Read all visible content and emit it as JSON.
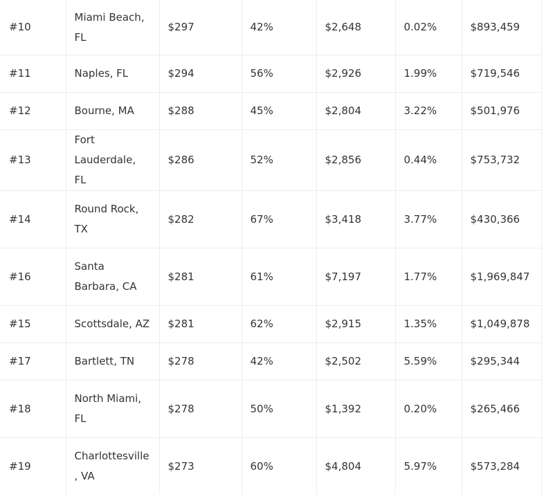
{
  "table": {
    "rows": [
      {
        "rank": "#10",
        "city": "Miami Beach, FL",
        "cost": "$297",
        "pct": "42%",
        "rent": "$2,648",
        "growth": "0.02%",
        "price": "$893,459",
        "size": "first"
      },
      {
        "rank": "#11",
        "city": "Naples, FL",
        "cost": "$294",
        "pct": "56%",
        "rent": "$2,926",
        "growth": "1.99%",
        "price": "$719,546",
        "size": "short"
      },
      {
        "rank": "#12",
        "city": "Bourne, MA",
        "cost": "$288",
        "pct": "45%",
        "rent": "$2,804",
        "growth": "3.22%",
        "price": "$501,976",
        "size": "short"
      },
      {
        "rank": "#13",
        "city": "Fort Lauderdale, FL",
        "cost": "$286",
        "pct": "52%",
        "rent": "$2,856",
        "growth": "0.44%",
        "price": "$753,732",
        "size": "tall"
      },
      {
        "rank": "#14",
        "city": "Round Rock, TX",
        "cost": "$282",
        "pct": "67%",
        "rent": "$3,418",
        "growth": "3.77%",
        "price": "$430,366",
        "size": "tall"
      },
      {
        "rank": "#16",
        "city": "Santa Barbara, CA",
        "cost": "$281",
        "pct": "61%",
        "rent": "$7,197",
        "growth": "1.77%",
        "price": "$1,969,847",
        "size": "tall"
      },
      {
        "rank": "#15",
        "city": "Scottsdale, AZ",
        "cost": "$281",
        "pct": "62%",
        "rent": "$2,915",
        "growth": "1.35%",
        "price": "$1,049,878",
        "size": "short"
      },
      {
        "rank": "#17",
        "city": "Bartlett, TN",
        "cost": "$278",
        "pct": "42%",
        "rent": "$2,502",
        "growth": "5.59%",
        "price": "$295,344",
        "size": "short"
      },
      {
        "rank": "#18",
        "city": "North Miami, FL",
        "cost": "$278",
        "pct": "50%",
        "rent": "$1,392",
        "growth": "0.20%",
        "price": "$265,466",
        "size": "tall"
      },
      {
        "rank": "#19",
        "city": "Charlottesville, VA",
        "cost": "$273",
        "pct": "60%",
        "rent": "$4,804",
        "growth": "5.97%",
        "price": "$573,284",
        "size": "tall"
      }
    ]
  }
}
